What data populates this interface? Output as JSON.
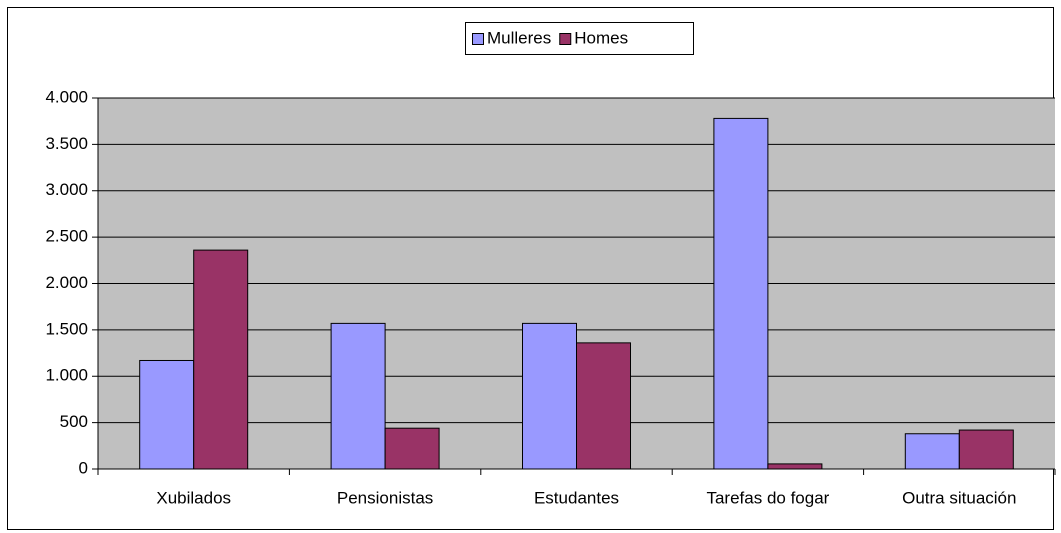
{
  "chart_data": {
    "type": "bar",
    "categories": [
      "Xubilados",
      "Pensionistas",
      "Estudantes",
      "Tarefas do fogar",
      "Outra situación"
    ],
    "series": [
      {
        "name": "Mulleres",
        "color": "#9999ff",
        "values": [
          1170,
          1570,
          1570,
          3780,
          380
        ]
      },
      {
        "name": "Homes",
        "color": "#993366",
        "values": [
          2360,
          440,
          1360,
          55,
          420
        ]
      }
    ],
    "ylim": [
      0,
      4000
    ],
    "yticks": [
      0,
      500,
      {
        "value": 1000,
        "label": "1.000"
      },
      {
        "value": 1500,
        "label": "1.500"
      },
      {
        "value": 2000,
        "label": "2.000"
      },
      {
        "value": 2500,
        "label": "2.500"
      },
      {
        "value": 3000,
        "label": "3.000"
      },
      {
        "value": 3500,
        "label": "3.500"
      },
      {
        "value": 4000,
        "label": "4.000"
      }
    ],
    "grid": true,
    "legend": "top"
  }
}
